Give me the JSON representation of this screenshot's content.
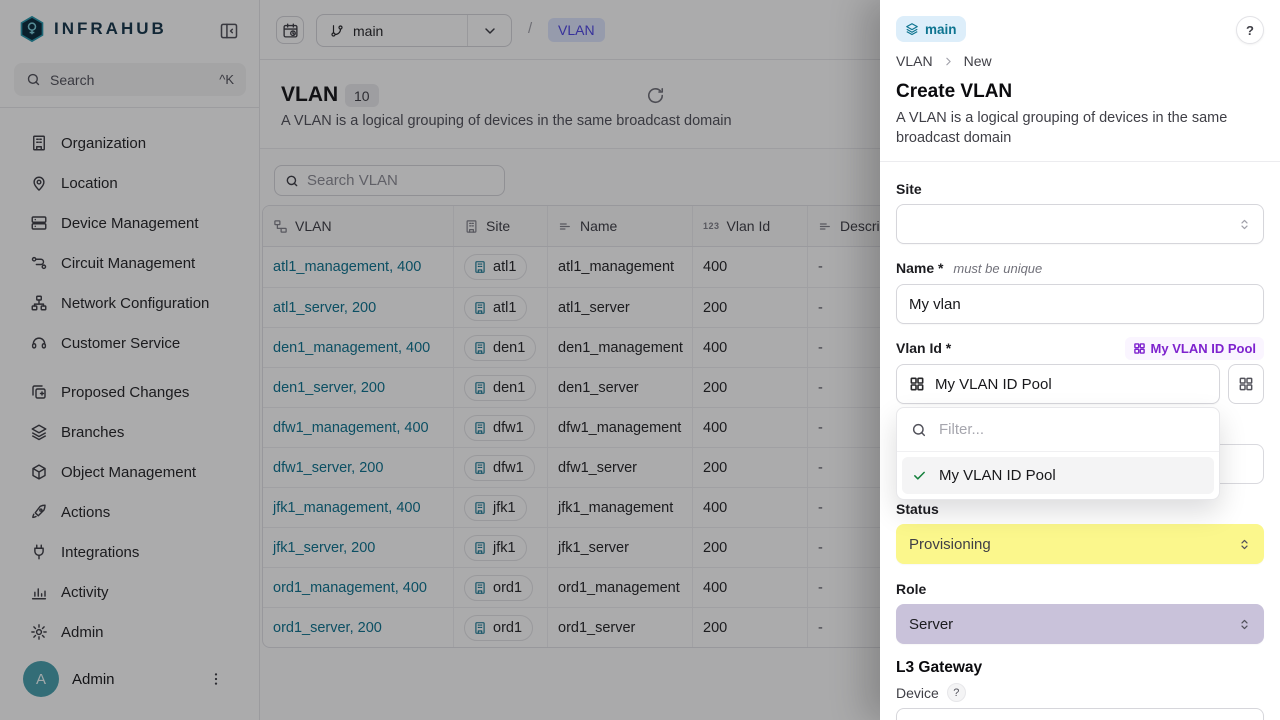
{
  "colors": {
    "accent_teal": "#0E7490",
    "link_teal": "#0E7490",
    "branch_badge_bg": "#DDEEFA",
    "branch_badge_text": "#0D7490",
    "breadcrumb_chip_bg": "#E0E7FF",
    "breadcrumb_chip_text": "#4F46E5",
    "pool_badge_bg": "#FAF5FF",
    "pool_badge_text": "#7E22CE",
    "status_provisioning_bg": "#FBF78C",
    "role_server_bg": "#C9C2DA",
    "avatar_bg": "#4AA2AF",
    "check_green": "#15803D",
    "overlay": "rgba(9,9,11,0.34)"
  },
  "sidebar": {
    "logo_text": "INFRAHUB",
    "search_placeholder": "Search",
    "search_shortcut": "^K",
    "nav_primary": [
      {
        "label": "Organization",
        "icon": "building"
      },
      {
        "label": "Location",
        "icon": "map-pin"
      },
      {
        "label": "Device Management",
        "icon": "server"
      },
      {
        "label": "Circuit Management",
        "icon": "route"
      },
      {
        "label": "Network Configuration",
        "icon": "network"
      },
      {
        "label": "Customer Service",
        "icon": "customer-service"
      }
    ],
    "nav_secondary": [
      {
        "label": "Proposed Changes",
        "icon": "copy-diff"
      },
      {
        "label": "Branches",
        "icon": "layers"
      },
      {
        "label": "Object Management",
        "icon": "cube"
      },
      {
        "label": "Actions",
        "icon": "rocket"
      },
      {
        "label": "Integrations",
        "icon": "plug"
      },
      {
        "label": "Activity",
        "icon": "bar-chart"
      },
      {
        "label": "Admin",
        "icon": "gear"
      }
    ],
    "user": {
      "initial": "A",
      "name": "Admin"
    }
  },
  "topbar": {
    "branch": "main",
    "separator": "/",
    "breadcrumb_item": "VLAN"
  },
  "main": {
    "title": "VLAN",
    "count": "10",
    "subtitle": "A VLAN is a logical grouping of devices in the same broadcast domain",
    "search_placeholder": "Search VLAN",
    "table": {
      "columns": [
        {
          "label": "VLAN",
          "icon": "relationship"
        },
        {
          "label": "Site",
          "icon": "building"
        },
        {
          "label": "Name",
          "icon": "text"
        },
        {
          "label": "Vlan Id",
          "icon": "number"
        },
        {
          "label": "Description",
          "icon": "text"
        }
      ],
      "rows": [
        {
          "vlan": "atl1_management, 400",
          "site": "atl1",
          "name": "atl1_management",
          "vlan_id": "400",
          "description": "-"
        },
        {
          "vlan": "atl1_server, 200",
          "site": "atl1",
          "name": "atl1_server",
          "vlan_id": "200",
          "description": "-"
        },
        {
          "vlan": "den1_management, 400",
          "site": "den1",
          "name": "den1_management",
          "vlan_id": "400",
          "description": "-"
        },
        {
          "vlan": "den1_server, 200",
          "site": "den1",
          "name": "den1_server",
          "vlan_id": "200",
          "description": "-"
        },
        {
          "vlan": "dfw1_management, 400",
          "site": "dfw1",
          "name": "dfw1_management",
          "vlan_id": "400",
          "description": "-"
        },
        {
          "vlan": "dfw1_server, 200",
          "site": "dfw1",
          "name": "dfw1_server",
          "vlan_id": "200",
          "description": "-"
        },
        {
          "vlan": "jfk1_management, 400",
          "site": "jfk1",
          "name": "jfk1_management",
          "vlan_id": "400",
          "description": "-"
        },
        {
          "vlan": "jfk1_server, 200",
          "site": "jfk1",
          "name": "jfk1_server",
          "vlan_id": "200",
          "description": "-"
        },
        {
          "vlan": "ord1_management, 400",
          "site": "ord1",
          "name": "ord1_management",
          "vlan_id": "400",
          "description": "-"
        },
        {
          "vlan": "ord1_server, 200",
          "site": "ord1",
          "name": "ord1_server",
          "vlan_id": "200",
          "description": "-"
        }
      ]
    }
  },
  "drawer": {
    "branch_badge": "main",
    "help_label": "?",
    "breadcrumb": {
      "parent": "VLAN",
      "current": "New"
    },
    "title": "Create VLAN",
    "description": "A VLAN is a logical grouping of devices in the same broadcast domain",
    "site_label": "Site",
    "name_label": "Name",
    "name_required": "*",
    "name_hint": "must be unique",
    "name_value": "My vlan",
    "vlan_id_label": "Vlan Id",
    "vlan_id_required": "*",
    "pool_badge": "My VLAN ID Pool",
    "vlan_id_value": "My VLAN ID Pool",
    "dropdown": {
      "filter_placeholder": "Filter...",
      "options": [
        {
          "label": "My VLAN ID Pool",
          "selected": true
        }
      ]
    },
    "status_label": "Status",
    "status_value": "Provisioning",
    "role_label": "Role",
    "role_value": "Server",
    "l3_heading": "L3 Gateway",
    "device_label": "Device",
    "device_tooltip": "?"
  }
}
